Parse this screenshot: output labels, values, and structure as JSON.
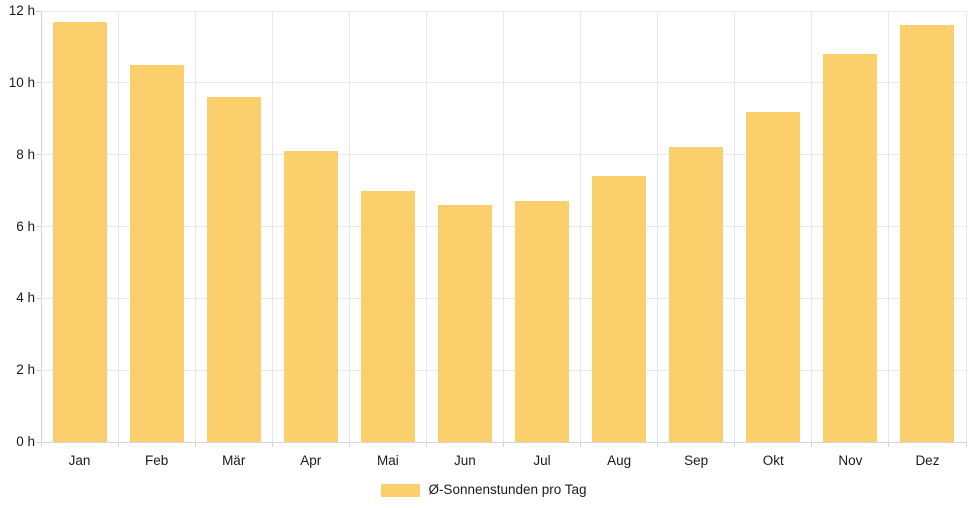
{
  "chart_data": {
    "type": "bar",
    "title": "",
    "xlabel": "",
    "ylabel": "",
    "categories": [
      "Jan",
      "Feb",
      "Mär",
      "Apr",
      "Mai",
      "Jun",
      "Jul",
      "Aug",
      "Sep",
      "Okt",
      "Nov",
      "Dez"
    ],
    "series": [
      {
        "name": "Ø-Sonnenstunden pro Tag",
        "values": [
          11.7,
          10.5,
          9.6,
          8.1,
          7.0,
          6.6,
          6.7,
          7.4,
          8.2,
          9.2,
          10.8,
          11.6
        ]
      }
    ],
    "unit": "h",
    "ylim": [
      0,
      12
    ],
    "ytick_step": 2,
    "ytick_labels": [
      "0 h",
      "2 h",
      "4 h",
      "6 h",
      "8 h",
      "10 h",
      "12 h"
    ],
    "grid": true,
    "legend_position": "bottom",
    "legend_label": "Ø-Sonnenstunden pro Tag"
  },
  "colors": {
    "bar": "#FBCF6B",
    "grid": "#E8E8E8",
    "axis": "#D4D4D4",
    "text": "#1A1A1A",
    "background": "#FFFFFF"
  }
}
